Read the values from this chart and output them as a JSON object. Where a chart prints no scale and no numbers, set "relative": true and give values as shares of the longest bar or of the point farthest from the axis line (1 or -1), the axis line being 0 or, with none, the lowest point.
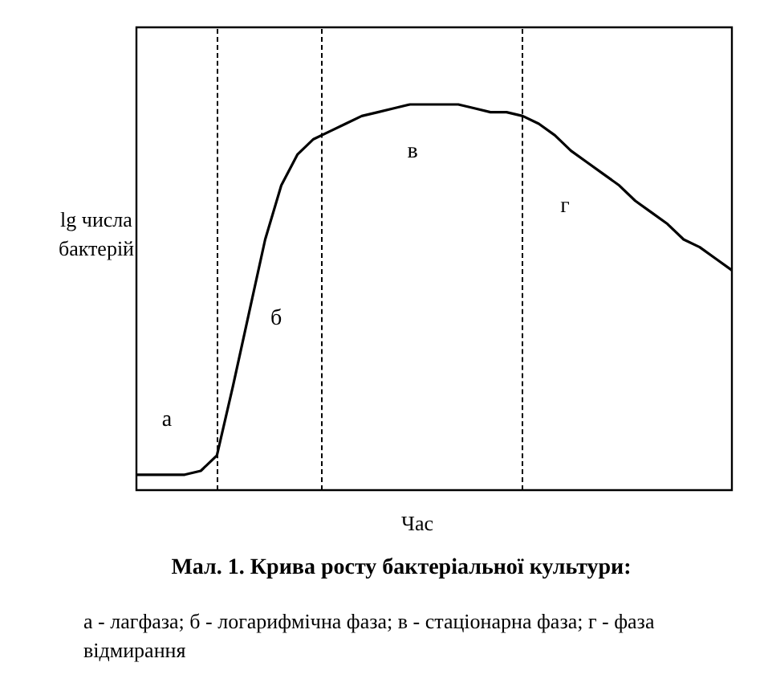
{
  "chart_data": {
    "type": "line",
    "relative": true,
    "title": "Мал. 1. Крива росту бактеріальної культури:",
    "xlabel": "Час",
    "ylabel": "lg числа\nбактерій",
    "categories": [
      null,
      null,
      null,
      null,
      null,
      null,
      null,
      null,
      null,
      null,
      null,
      null,
      null,
      null,
      null,
      null,
      null,
      null,
      null,
      null,
      null,
      null,
      null,
      null,
      null,
      null,
      null,
      null,
      null,
      null,
      null,
      null,
      null,
      null,
      null,
      null,
      null,
      null
    ],
    "legend": false,
    "marker": "none",
    "line_style": "solid",
    "series": [
      {
        "color": "#000000",
        "values": [
          0.04,
          0.04,
          0.04,
          0.04,
          0.05,
          0.09,
          0.27,
          0.46,
          0.65,
          0.79,
          0.87,
          0.91,
          0.93,
          0.95,
          0.97,
          0.98,
          0.99,
          1,
          1,
          1,
          1,
          0.99,
          0.98,
          0.98,
          0.97,
          0.95,
          0.92,
          0.88,
          0.85,
          0.82,
          0.79,
          0.75,
          0.72,
          0.69,
          0.65,
          0.63,
          0.6,
          0.57
        ]
      }
    ],
    "annotations": [
      "а",
      "б",
      "в",
      "г",
      "а - лагфаза; б - логарифмічна фаза; в - стаціонарна фаза; г - фаза відмирання"
    ]
  }
}
